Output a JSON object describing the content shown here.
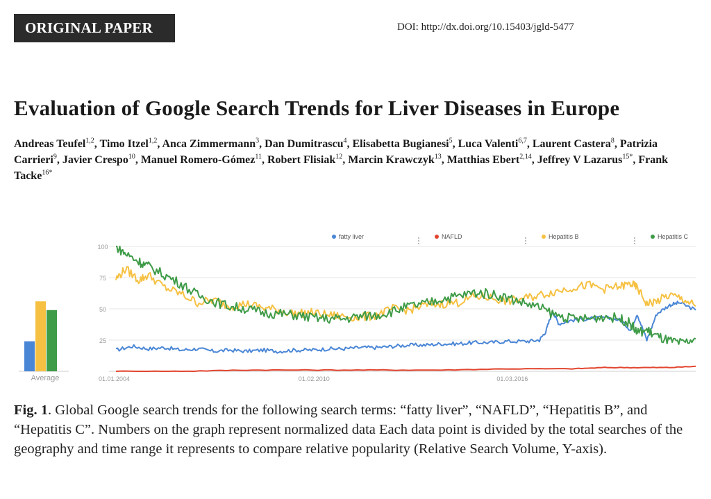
{
  "header": {
    "badge": "ORIGINAL PAPER",
    "doi": "DOI: http://dx.doi.org/10.15403/jgld-5477"
  },
  "paper": {
    "title": "Evaluation of Google Search Trends for Liver Diseases in Europe",
    "authors": [
      {
        "name": "Andreas Teufel",
        "aff": "1,2"
      },
      {
        "name": "Timo Itzel",
        "aff": "1,2"
      },
      {
        "name": "Anca Zimmermann",
        "aff": "3"
      },
      {
        "name": "Dan Dumitrascu",
        "aff": "4"
      },
      {
        "name": "Elisabetta Bugianesi",
        "aff": "5"
      },
      {
        "name": "Luca Valenti",
        "aff": "6,7"
      },
      {
        "name": "Laurent Castera",
        "aff": "8"
      },
      {
        "name": "Patrizia Carrieri",
        "aff": "9"
      },
      {
        "name": "Javier Crespo",
        "aff": "10"
      },
      {
        "name": "Manuel Romero-Gómez",
        "aff": "11"
      },
      {
        "name": "Robert Flisiak",
        "aff": "12"
      },
      {
        "name": "Marcin Krawczyk",
        "aff": "13"
      },
      {
        "name": "Matthias Ebert",
        "aff": "2,14"
      },
      {
        "name": "Jeffrey V Lazarus",
        "aff": "15*"
      },
      {
        "name": "Frank Tacke",
        "aff": "16*"
      }
    ]
  },
  "figure": {
    "caption_label": "Fig. 1",
    "caption_text": ". Global Google search trends for the following search terms: “fatty liver”, “NAFLD”, “Hepatitis B”, and “Hepatitis C”. Numbers on the graph represent normalized data Each data point is divided by the total searches of the geography and time range it represents to compare relative popularity (Relative Search Volume, Y-axis)."
  },
  "chart_data": [
    {
      "type": "bar",
      "xlabel": "Average",
      "categories": [
        "fatty liver",
        "Hepatitis B",
        "Hepatitis C"
      ],
      "values": [
        24,
        56,
        49
      ],
      "colors": [
        "#4a86d6",
        "#f6c142",
        "#3e9b47"
      ],
      "ylim": [
        0,
        100
      ]
    },
    {
      "type": "line",
      "x_ticks": [
        "01.01.2004",
        "01.02.2010",
        "01.03.2016"
      ],
      "x_tick_years": [
        2004.0,
        2010.08,
        2016.17
      ],
      "x_range": [
        2004.0,
        2021.8
      ],
      "ylim": [
        0,
        100
      ],
      "y_ticks": [
        100,
        75,
        50,
        25
      ],
      "grid": true,
      "legend_position": "top",
      "series": [
        {
          "name": "fatty liver",
          "color": "#4a86d6",
          "points": [
            [
              2004.0,
              17
            ],
            [
              2004.5,
              20
            ],
            [
              2005,
              18
            ],
            [
              2005.5,
              19
            ],
            [
              2006,
              17
            ],
            [
              2006.5,
              18
            ],
            [
              2007,
              16
            ],
            [
              2007.5,
              17
            ],
            [
              2008,
              16
            ],
            [
              2008.5,
              17
            ],
            [
              2009,
              16
            ],
            [
              2009.5,
              17
            ],
            [
              2010,
              17
            ],
            [
              2010.5,
              18
            ],
            [
              2011,
              18
            ],
            [
              2011.5,
              19
            ],
            [
              2012,
              19
            ],
            [
              2012.5,
              20
            ],
            [
              2013,
              21
            ],
            [
              2013.5,
              21
            ],
            [
              2014,
              22
            ],
            [
              2014.5,
              22
            ],
            [
              2015,
              23
            ],
            [
              2015.5,
              23
            ],
            [
              2016,
              24
            ],
            [
              2016.6,
              24
            ],
            [
              2017.0,
              25
            ],
            [
              2017.2,
              32
            ],
            [
              2017.4,
              48
            ],
            [
              2017.6,
              38
            ],
            [
              2018,
              41
            ],
            [
              2018.5,
              42
            ],
            [
              2019,
              43
            ],
            [
              2019.5,
              41
            ],
            [
              2019.8,
              33
            ],
            [
              2020.0,
              46
            ],
            [
              2020.3,
              25
            ],
            [
              2020.6,
              46
            ],
            [
              2021,
              53
            ],
            [
              2021.3,
              55
            ],
            [
              2021.8,
              49
            ]
          ]
        },
        {
          "name": "NAFLD",
          "color": "#e2452f",
          "points": [
            [
              2004.0,
              0
            ],
            [
              2006,
              0
            ],
            [
              2008,
              1
            ],
            [
              2010,
              1
            ],
            [
              2012,
              1
            ],
            [
              2014,
              1
            ],
            [
              2016,
              2
            ],
            [
              2018,
              2
            ],
            [
              2019,
              3
            ],
            [
              2020,
              3
            ],
            [
              2021,
              3
            ],
            [
              2021.8,
              4
            ]
          ]
        },
        {
          "name": "Hepatitis B",
          "color": "#f6c142",
          "points": [
            [
              2004.0,
              74
            ],
            [
              2004.3,
              82
            ],
            [
              2004.7,
              73
            ],
            [
              2005,
              77
            ],
            [
              2005.5,
              67
            ],
            [
              2006,
              62
            ],
            [
              2006.5,
              55
            ],
            [
              2007,
              57
            ],
            [
              2007.5,
              52
            ],
            [
              2008,
              54
            ],
            [
              2008.5,
              51
            ],
            [
              2009,
              49
            ],
            [
              2009.5,
              46
            ],
            [
              2010,
              47
            ],
            [
              2010.5,
              45
            ],
            [
              2011,
              44
            ],
            [
              2011.5,
              43
            ],
            [
              2012,
              45
            ],
            [
              2012.5,
              50
            ],
            [
              2013,
              49
            ],
            [
              2013.5,
              53
            ],
            [
              2014,
              54
            ],
            [
              2014.5,
              55
            ],
            [
              2015,
              60
            ],
            [
              2015.5,
              59
            ],
            [
              2016,
              56
            ],
            [
              2016.5,
              58
            ],
            [
              2017,
              61
            ],
            [
              2017.5,
              64
            ],
            [
              2018,
              67
            ],
            [
              2018.5,
              69
            ],
            [
              2019,
              66
            ],
            [
              2019.5,
              68
            ],
            [
              2019.8,
              70
            ],
            [
              2020,
              67
            ],
            [
              2020.3,
              54
            ],
            [
              2020.6,
              56
            ],
            [
              2021,
              61
            ],
            [
              2021.4,
              58
            ],
            [
              2021.8,
              52
            ]
          ]
        },
        {
          "name": "Hepatitis C",
          "color": "#3e9b47",
          "points": [
            [
              2004.0,
              100
            ],
            [
              2004.3,
              94
            ],
            [
              2004.7,
              88
            ],
            [
              2005,
              84
            ],
            [
              2005.5,
              77
            ],
            [
              2006,
              70
            ],
            [
              2006.5,
              61
            ],
            [
              2007,
              56
            ],
            [
              2007.5,
              52
            ],
            [
              2008,
              50
            ],
            [
              2008.5,
              47
            ],
            [
              2009,
              46
            ],
            [
              2009.5,
              45
            ],
            [
              2010,
              43
            ],
            [
              2010.5,
              42
            ],
            [
              2011,
              42
            ],
            [
              2011.5,
              44
            ],
            [
              2012,
              45
            ],
            [
              2012.5,
              48
            ],
            [
              2013,
              52
            ],
            [
              2013.5,
              54
            ],
            [
              2014,
              58
            ],
            [
              2014.5,
              60
            ],
            [
              2015,
              63
            ],
            [
              2015.5,
              62
            ],
            [
              2016,
              59
            ],
            [
              2016.5,
              55
            ],
            [
              2017,
              51
            ],
            [
              2017.5,
              45
            ],
            [
              2018,
              42
            ],
            [
              2018.5,
              42
            ],
            [
              2019,
              44
            ],
            [
              2019.5,
              42
            ],
            [
              2019.8,
              38
            ],
            [
              2020.0,
              31
            ],
            [
              2020.3,
              33
            ],
            [
              2020.6,
              28
            ],
            [
              2021,
              24
            ],
            [
              2021.4,
              22
            ],
            [
              2021.8,
              26
            ]
          ]
        }
      ]
    }
  ]
}
